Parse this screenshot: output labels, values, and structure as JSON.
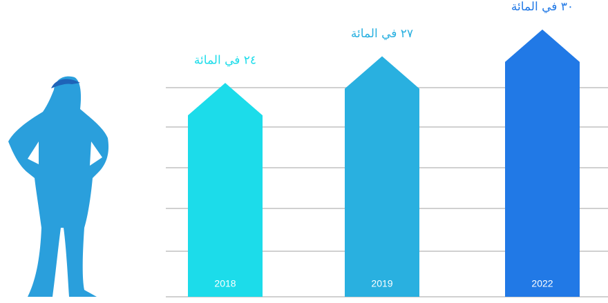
{
  "chart_data": {
    "type": "arrow-bar",
    "categories": [
      "2018",
      "2019",
      "2022"
    ],
    "values": [
      24,
      27,
      30
    ],
    "value_labels": [
      "٢٤ في المائة",
      "٢٧ في المائة",
      "٣٠ في المائة"
    ],
    "colors": [
      "#1cdcea",
      "#29b0e0",
      "#2179e6"
    ],
    "ylim": [
      0,
      33
    ]
  }
}
